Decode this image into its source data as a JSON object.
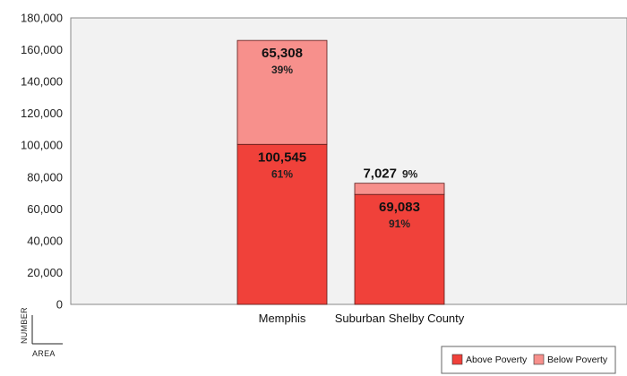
{
  "chart_data": {
    "type": "bar",
    "stacked": true,
    "categories": [
      "Memphis",
      "Suburban Shelby County"
    ],
    "series": [
      {
        "name": "Above Poverty",
        "values": [
          100545,
          69083
        ],
        "labels": [
          "100,545",
          "69,083"
        ],
        "percents": [
          "61%",
          "91%"
        ],
        "color": "#f0413a"
      },
      {
        "name": "Below Poverty",
        "values": [
          65308,
          7027
        ],
        "labels": [
          "65,308",
          "7,027"
        ],
        "percents": [
          "39%",
          "9%"
        ],
        "color": "#f7908c"
      }
    ],
    "ylim": [
      0,
      180000
    ],
    "yticks": [
      0,
      20000,
      40000,
      60000,
      80000,
      100000,
      120000,
      140000,
      160000,
      180000
    ],
    "ytick_labels": [
      "0",
      "20,000",
      "40,000",
      "60,000",
      "80,000",
      "100,000",
      "120,000",
      "140,000",
      "160,000",
      "180,000"
    ],
    "ylabel": "NUMBER",
    "xlabel": "AREA",
    "legend": "bottom-right",
    "plot_background": "#f2f2f2"
  }
}
